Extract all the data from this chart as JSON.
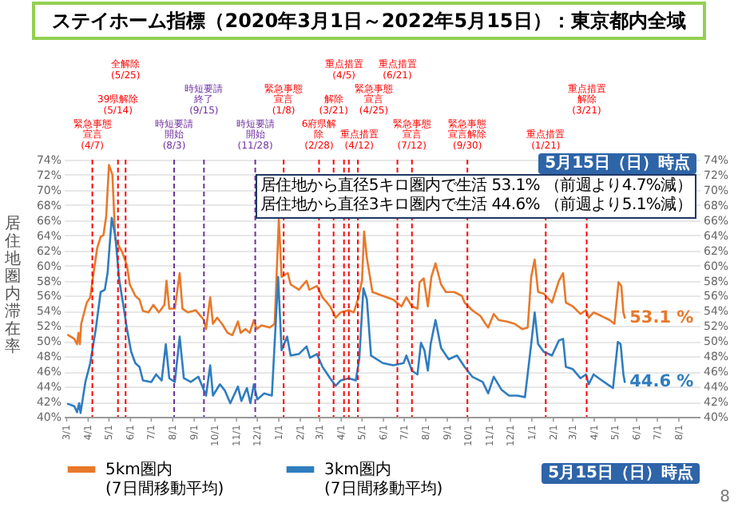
{
  "chart_data": {
    "type": "line",
    "title": "ステイホーム指標（2020年3月1日～2022年5月15日）：東京都内全域",
    "ylabel": "居住地圏内滞在率",
    "xlim": [
      "2020-02-26",
      "2022-08-31"
    ],
    "ylim": [
      40,
      74
    ],
    "yticks": [
      {
        "value": 40,
        "label": "40%"
      },
      {
        "value": 42,
        "label": "42%"
      },
      {
        "value": 44,
        "label": "44%"
      },
      {
        "value": 46,
        "label": "46%"
      },
      {
        "value": 48,
        "label": "48%"
      },
      {
        "value": 50,
        "label": "50%"
      },
      {
        "value": 52,
        "label": "52%"
      },
      {
        "value": 54,
        "label": "54%"
      },
      {
        "value": 56,
        "label": "56%"
      },
      {
        "value": 58,
        "label": "58%"
      },
      {
        "value": 60,
        "label": "60%"
      },
      {
        "value": 62,
        "label": "62%"
      },
      {
        "value": 64,
        "label": "64%"
      },
      {
        "value": 66,
        "label": "66%"
      },
      {
        "value": 68,
        "label": "68%"
      },
      {
        "value": 70,
        "label": "70%"
      },
      {
        "value": 72,
        "label": "72%"
      },
      {
        "value": 74,
        "label": "74%"
      }
    ],
    "y2lim": [
      40,
      74
    ],
    "y2ticks": [
      {
        "value": 40,
        "label": "40%"
      },
      {
        "value": 42,
        "label": "42%"
      },
      {
        "value": 44,
        "label": "44%"
      },
      {
        "value": 46,
        "label": "46%"
      },
      {
        "value": 48,
        "label": "48%"
      },
      {
        "value": 50,
        "label": "50%"
      },
      {
        "value": 52,
        "label": "52%"
      },
      {
        "value": 54,
        "label": "54%"
      },
      {
        "value": 56,
        "label": "56%"
      },
      {
        "value": 58,
        "label": "58%"
      },
      {
        "value": 60,
        "label": "60%"
      },
      {
        "value": 62,
        "label": "62%"
      },
      {
        "value": 64,
        "label": "64%"
      },
      {
        "value": 66,
        "label": "66%"
      },
      {
        "value": 68,
        "label": "68%"
      },
      {
        "value": 70,
        "label": "70%"
      },
      {
        "value": 72,
        "label": "72%"
      },
      {
        "value": 74,
        "label": "74%"
      }
    ],
    "xticks": [
      {
        "value": "2020-03-01",
        "label": "3/1"
      },
      {
        "value": "2020-04-01",
        "label": "4/1"
      },
      {
        "value": "2020-05-01",
        "label": "5/1"
      },
      {
        "value": "2020-06-01",
        "label": "6/1"
      },
      {
        "value": "2020-07-01",
        "label": "7/1"
      },
      {
        "value": "2020-08-01",
        "label": "8/1"
      },
      {
        "value": "2020-09-01",
        "label": "9/1"
      },
      {
        "value": "2020-10-01",
        "label": "10/1"
      },
      {
        "value": "2020-11-01",
        "label": "11/1"
      },
      {
        "value": "2020-12-01",
        "label": "12/1"
      },
      {
        "value": "2021-01-01",
        "label": "1/1"
      },
      {
        "value": "2021-02-01",
        "label": "2/1"
      },
      {
        "value": "2021-03-01",
        "label": "3/1"
      },
      {
        "value": "2021-04-01",
        "label": "4/1"
      },
      {
        "value": "2021-05-01",
        "label": "5/1"
      },
      {
        "value": "2021-06-01",
        "label": "6/1"
      },
      {
        "value": "2021-07-01",
        "label": "7/1"
      },
      {
        "value": "2021-08-01",
        "label": "8/1"
      },
      {
        "value": "2021-09-01",
        "label": "9/1"
      },
      {
        "value": "2021-10-01",
        "label": "10/1"
      },
      {
        "value": "2021-11-01",
        "label": "11/1"
      },
      {
        "value": "2021-12-01",
        "label": "12/1"
      },
      {
        "value": "2022-01-01",
        "label": "1/1"
      },
      {
        "value": "2022-02-01",
        "label": "2/1"
      },
      {
        "value": "2022-03-01",
        "label": "3/1"
      },
      {
        "value": "2022-04-01",
        "label": "4/1"
      },
      {
        "value": "2022-05-01",
        "label": "5/1"
      },
      {
        "value": "2022-06-01",
        "label": "6/1"
      },
      {
        "value": "2022-07-01",
        "label": "7/1"
      },
      {
        "value": "2022-08-01",
        "label": "8/1"
      }
    ],
    "grid": "y",
    "legend": "bottom",
    "series": [
      {
        "name": "5km圏内\n(7日間移動平均)",
        "color": "#e8792b",
        "x": [
          "2020-03-03",
          "2020-03-12",
          "2020-03-16",
          "2020-03-18",
          "2020-03-20",
          "2020-03-22",
          "2020-03-30",
          "2020-04-04",
          "2020-04-08",
          "2020-04-14",
          "2020-04-19",
          "2020-04-23",
          "2020-04-27",
          "2020-05-01",
          "2020-05-06",
          "2020-05-10",
          "2020-05-20",
          "2020-05-27",
          "2020-05-31",
          "2020-06-08",
          "2020-06-14",
          "2020-06-19",
          "2020-06-27",
          "2020-07-04",
          "2020-07-12",
          "2020-07-20",
          "2020-07-23",
          "2020-07-27",
          "2020-08-04",
          "2020-08-11",
          "2020-08-15",
          "2020-08-23",
          "2020-09-03",
          "2020-09-15",
          "2020-09-18",
          "2020-09-24",
          "2020-09-28",
          "2020-10-04",
          "2020-10-11",
          "2020-10-19",
          "2020-10-26",
          "2020-11-03",
          "2020-11-07",
          "2020-11-14",
          "2020-11-20",
          "2020-11-26",
          "2020-11-30",
          "2020-12-07",
          "2020-12-19",
          "2020-12-26",
          "2021-01-01",
          "2021-01-05",
          "2021-01-10",
          "2021-01-14",
          "2021-01-18",
          "2021-01-30",
          "2021-02-10",
          "2021-02-14",
          "2021-02-25",
          "2021-03-05",
          "2021-03-16",
          "2021-03-24",
          "2021-03-31",
          "2021-04-12",
          "2021-04-19",
          "2021-04-25",
          "2021-05-01",
          "2021-05-04",
          "2021-05-08",
          "2021-05-16",
          "2021-05-31",
          "2021-06-15",
          "2021-06-27",
          "2021-07-04",
          "2021-07-12",
          "2021-07-20",
          "2021-07-23",
          "2021-07-29",
          "2021-08-04",
          "2021-08-09",
          "2021-08-15",
          "2021-08-23",
          "2021-08-30",
          "2021-09-11",
          "2021-09-22",
          "2021-09-26",
          "2021-10-07",
          "2021-10-19",
          "2021-10-26",
          "2021-10-30",
          "2021-11-07",
          "2021-11-14",
          "2021-11-26",
          "2021-12-07",
          "2021-12-18",
          "2021-12-26",
          "2021-12-31",
          "2022-01-05",
          "2022-01-10",
          "2022-01-18",
          "2022-01-30",
          "2022-02-09",
          "2022-02-15",
          "2022-02-19",
          "2022-03-01",
          "2022-03-12",
          "2022-03-20",
          "2022-03-24",
          "2022-03-31",
          "2022-04-12",
          "2022-04-23",
          "2022-04-30",
          "2022-05-06",
          "2022-05-10",
          "2022-05-13",
          "2022-05-15"
        ],
        "values": [
          50.8,
          50.3,
          49.6,
          51.1,
          49.6,
          52.3,
          55.1,
          55.8,
          58.5,
          62.3,
          63.8,
          64,
          66.5,
          73.3,
          72.0,
          63.5,
          61.8,
          60,
          57.5,
          56,
          55.5,
          54,
          53.8,
          54.8,
          53.8,
          54.8,
          58,
          54.3,
          54.3,
          59,
          54.3,
          53.8,
          54.1,
          52.8,
          51.6,
          55.8,
          52.3,
          53.1,
          52.3,
          51.1,
          50.8,
          52.6,
          51.1,
          51.6,
          51.1,
          52.8,
          51.6,
          52.1,
          51.8,
          52.3,
          66.1,
          58.5,
          58.8,
          59,
          57.5,
          56.8,
          58,
          56.8,
          57.3,
          55.8,
          54.6,
          53.1,
          53.8,
          54.1,
          53.8,
          55.5,
          58,
          64.5,
          61,
          56.5,
          56,
          55.5,
          54.6,
          55.8,
          54.6,
          54.3,
          57.8,
          58.3,
          54.6,
          58.5,
          60.3,
          57.5,
          56.5,
          56.5,
          56,
          55.1,
          54.1,
          53.3,
          52.3,
          51.8,
          53.6,
          52.8,
          52.6,
          52.3,
          51.6,
          51.8,
          58.5,
          60.8,
          56.5,
          56.3,
          55.1,
          58,
          59,
          55.1,
          54.6,
          53.6,
          54.1,
          53.1,
          53.8,
          53.3,
          52.8,
          52.3,
          57.8,
          57.3,
          53.8,
          53.1
        ]
      },
      {
        "name": "3km圏内\n(7日間移動平均)",
        "color": "#2f7dbf",
        "x": [
          "2020-03-03",
          "2020-03-12",
          "2020-03-16",
          "2020-03-19",
          "2020-03-21",
          "2020-03-28",
          "2020-04-04",
          "2020-04-12",
          "2020-04-19",
          "2020-04-25",
          "2020-04-29",
          "2020-05-05",
          "2020-05-10",
          "2020-05-16",
          "2020-05-22",
          "2020-05-27",
          "2020-06-02",
          "2020-06-08",
          "2020-06-14",
          "2020-06-19",
          "2020-07-01",
          "2020-07-08",
          "2020-07-16",
          "2020-07-22",
          "2020-07-27",
          "2020-08-04",
          "2020-08-11",
          "2020-08-17",
          "2020-08-27",
          "2020-09-07",
          "2020-09-18",
          "2020-09-24",
          "2020-09-28",
          "2020-10-08",
          "2020-10-15",
          "2020-10-23",
          "2020-11-03",
          "2020-11-08",
          "2020-11-16",
          "2020-11-21",
          "2020-11-26",
          "2020-12-01",
          "2020-12-11",
          "2020-12-22",
          "2020-12-31",
          "2021-01-05",
          "2021-01-13",
          "2021-01-18",
          "2021-01-30",
          "2021-02-10",
          "2021-02-15",
          "2021-02-25",
          "2021-03-05",
          "2021-03-16",
          "2021-03-24",
          "2021-03-31",
          "2021-04-12",
          "2021-04-22",
          "2021-04-27",
          "2021-05-03",
          "2021-05-08",
          "2021-05-14",
          "2021-05-31",
          "2021-06-15",
          "2021-06-30",
          "2021-07-04",
          "2021-07-12",
          "2021-07-20",
          "2021-07-25",
          "2021-07-30",
          "2021-08-04",
          "2021-08-08",
          "2021-08-15",
          "2021-08-23",
          "2021-09-03",
          "2021-09-15",
          "2021-09-26",
          "2021-10-07",
          "2021-10-22",
          "2021-10-30",
          "2021-11-07",
          "2021-11-18",
          "2021-11-29",
          "2021-12-11",
          "2021-12-22",
          "2021-12-31",
          "2022-01-05",
          "2022-01-10",
          "2022-01-18",
          "2022-01-30",
          "2022-02-09",
          "2022-02-15",
          "2022-02-19",
          "2022-03-01",
          "2022-03-12",
          "2022-03-20",
          "2022-03-24",
          "2022-03-31",
          "2022-04-12",
          "2022-04-23",
          "2022-04-28",
          "2022-05-05",
          "2022-05-09",
          "2022-05-13",
          "2022-05-15"
        ],
        "values": [
          41.7,
          41.4,
          40.6,
          41.8,
          40.5,
          44.6,
          47.1,
          51.6,
          56.5,
          56.8,
          59,
          66.3,
          64,
          58,
          54.6,
          51.6,
          48.6,
          47.1,
          46.6,
          44.8,
          44.6,
          45.6,
          44.8,
          49.6,
          45.1,
          44.6,
          50.6,
          45.1,
          44.6,
          45.3,
          42.8,
          46.8,
          42.8,
          44.3,
          43.5,
          41.8,
          44.0,
          42.1,
          43.8,
          41.8,
          44.3,
          42.3,
          43.1,
          42.8,
          58.5,
          48.8,
          50.6,
          48.1,
          48.3,
          49.3,
          47.8,
          48.3,
          46.6,
          45.1,
          44.1,
          44.8,
          45.1,
          44.8,
          47.6,
          57,
          55.5,
          48.1,
          47.1,
          46.8,
          47.1,
          48.1,
          46.1,
          45.6,
          49.8,
          48.8,
          46.1,
          49.6,
          52.8,
          49.1,
          47.6,
          48.1,
          46.6,
          45.3,
          44.6,
          43.1,
          45.3,
          43.6,
          42.8,
          42.8,
          42.6,
          49.6,
          53.8,
          49.6,
          48.6,
          48.1,
          50.1,
          50.3,
          46.6,
          46.3,
          45.1,
          45.6,
          44.3,
          45.6,
          44.8,
          44.1,
          43.8,
          49.9,
          49.6,
          45.6,
          44.6
        ]
      }
    ],
    "ref_lines": [
      {
        "axis": "x",
        "value": "2020-04-07",
        "label": "緊急事態宣言(4/7)",
        "color": "#ff0000",
        "line_style": "dashed"
      },
      {
        "axis": "x",
        "value": "2020-05-14",
        "label": "39県解除(5/14)",
        "color": "#ff0000",
        "line_style": "dashed"
      },
      {
        "axis": "x",
        "value": "2020-05-25",
        "label": "全解除(5/25)",
        "color": "#ff0000",
        "line_style": "dashed"
      },
      {
        "axis": "x",
        "value": "2020-08-03",
        "label": "時短要請開始(8/3)",
        "color": "#7030a0",
        "line_style": "dashed"
      },
      {
        "axis": "x",
        "value": "2020-09-15",
        "label": "時短要請終了(9/15)",
        "color": "#7030a0",
        "line_style": "dashed"
      },
      {
        "axis": "x",
        "value": "2020-11-28",
        "label": "時短要請開始(11/28)",
        "color": "#7030a0",
        "line_style": "dashed"
      },
      {
        "axis": "x",
        "value": "2021-01-08",
        "label": "緊急事態宣言(1/8)",
        "color": "#ff0000",
        "line_style": "dashed"
      },
      {
        "axis": "x",
        "value": "2021-02-28",
        "label": "6府県解除(2/28)",
        "color": "#ff0000",
        "line_style": "dashed"
      },
      {
        "axis": "x",
        "value": "2021-03-21",
        "label": "解除(3/21)",
        "color": "#ff0000",
        "line_style": "dashed"
      },
      {
        "axis": "x",
        "value": "2021-04-05",
        "label": "重点措置(4/5)",
        "color": "#ff0000",
        "line_style": "dashed"
      },
      {
        "axis": "x",
        "value": "2021-04-12",
        "label": "重点措置(4/12)",
        "color": "#ff0000",
        "line_style": "dashed"
      },
      {
        "axis": "x",
        "value": "2021-04-25",
        "label": "緊急事態宣言(4/25)",
        "color": "#ff0000",
        "line_style": "dashed"
      },
      {
        "axis": "x",
        "value": "2021-06-21",
        "label": "重点措置(6/21)",
        "color": "#ff0000",
        "line_style": "dashed"
      },
      {
        "axis": "x",
        "value": "2021-07-12",
        "label": "緊急事態宣言(7/12)",
        "color": "#ff0000",
        "line_style": "dashed"
      },
      {
        "axis": "x",
        "value": "2021-09-30",
        "label": "緊急事態宣言解除(9/30)",
        "color": "#ff0000",
        "line_style": "dashed"
      },
      {
        "axis": "x",
        "value": "2022-01-21",
        "label": "重点措置(1/21)",
        "color": "#ff0000",
        "line_style": "dashed"
      },
      {
        "axis": "x",
        "value": "2022-03-21",
        "label": "重点措置解除(3/21)",
        "color": "#ff0000",
        "line_style": "dashed"
      }
    ],
    "annotations": [
      "5月15日（日）時点",
      "居住地から直径5キロ圏内で生活 53.1% （前週より4.7%減）",
      "居住地から直径3キロ圏内で生活 44.6% （前週より5.1%減）",
      "5月15日（日）時点",
      {
        "text": "53.1 %",
        "x": "2022-05-15",
        "y": 53.1
      },
      {
        "text": "44.6 %",
        "x": "2022-05-15",
        "y": 44.6
      },
      "8"
    ]
  }
}
